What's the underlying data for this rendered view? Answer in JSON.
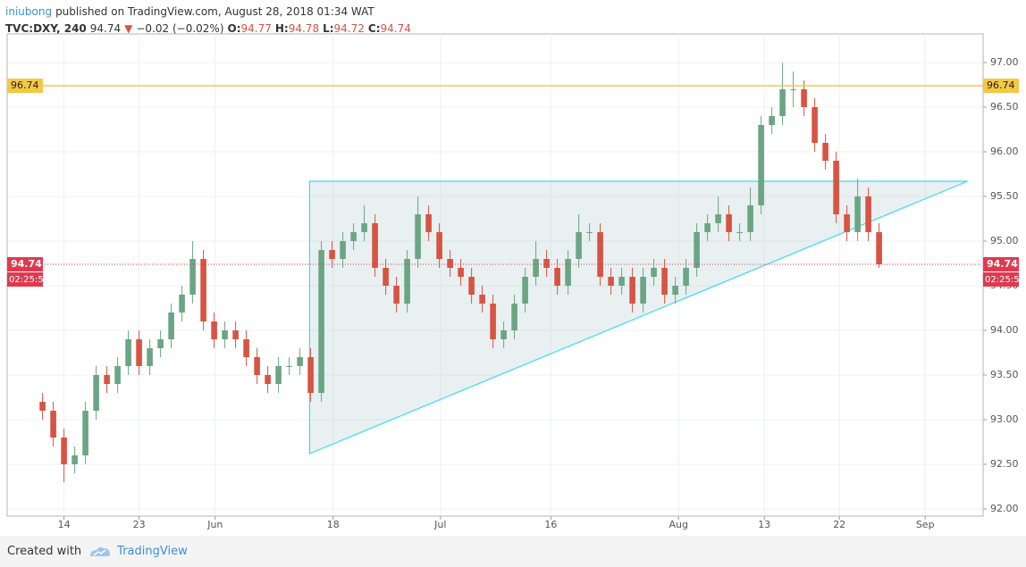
{
  "header": {
    "author": "iniubong",
    "published": "published on TradingView.com, August 28, 2018 01:34 WAT",
    "symbol": "TVC:DXY, 240",
    "last": 94.74,
    "direction": "▼",
    "change": "−0.02 (−0.02%)",
    "ohlc": [
      {
        "label": "O:",
        "value": 94.77
      },
      {
        "label": "H:",
        "value": 94.78
      },
      {
        "label": "L:",
        "value": 94.72
      },
      {
        "label": "C:",
        "value": 94.74
      }
    ]
  },
  "footer": {
    "created": "Created with",
    "brand": "TradingView"
  },
  "chart_data": {
    "type": "candlestick",
    "open": [
      93.2,
      93.1,
      92.8,
      92.5,
      92.6,
      93.1,
      93.5,
      93.4,
      93.6,
      93.9,
      93.6,
      93.8,
      93.9,
      94.2,
      94.4,
      94.8,
      94.1,
      93.9,
      94.0,
      93.9,
      93.7,
      93.5,
      93.4,
      93.6,
      93.6,
      93.7,
      93.3,
      94.9,
      94.8,
      95.0,
      95.1,
      95.2,
      94.7,
      94.5,
      94.3,
      94.8,
      95.3,
      95.1,
      94.8,
      94.7,
      94.6,
      94.4,
      94.3,
      93.9,
      94.0,
      94.3,
      94.6,
      94.8,
      94.7,
      94.5,
      94.8,
      95.1,
      95.1,
      94.6,
      94.5,
      94.6,
      94.3,
      94.6,
      94.7,
      94.4,
      94.5,
      94.7,
      95.1,
      95.2,
      95.3,
      95.1,
      95.1,
      95.4,
      96.3,
      96.4,
      96.7,
      96.7,
      96.5,
      96.1,
      95.9,
      95.3,
      95.1,
      95.5,
      95.1
    ],
    "high": [
      93.3,
      93.2,
      92.9,
      92.7,
      93.2,
      93.6,
      93.6,
      93.7,
      94.0,
      94.0,
      93.9,
      94.0,
      94.3,
      94.5,
      95.0,
      94.9,
      94.2,
      94.1,
      94.1,
      94.0,
      93.8,
      93.6,
      93.7,
      93.7,
      93.8,
      93.8,
      95.0,
      95.0,
      95.1,
      95.2,
      95.4,
      95.3,
      94.8,
      94.6,
      94.9,
      95.5,
      95.4,
      95.2,
      94.9,
      94.8,
      94.7,
      94.5,
      94.4,
      94.1,
      94.4,
      94.7,
      95.0,
      94.9,
      94.8,
      94.9,
      95.3,
      95.2,
      95.2,
      94.7,
      94.7,
      94.7,
      94.7,
      94.8,
      94.8,
      94.6,
      94.8,
      95.2,
      95.3,
      95.5,
      95.4,
      95.2,
      95.6,
      96.4,
      96.5,
      97.0,
      96.9,
      96.8,
      96.6,
      96.2,
      96.0,
      95.4,
      95.7,
      95.6,
      95.2
    ],
    "low": [
      93.0,
      92.7,
      92.3,
      92.4,
      92.5,
      93.0,
      93.3,
      93.3,
      93.5,
      93.5,
      93.5,
      93.7,
      93.8,
      94.1,
      94.3,
      94.0,
      93.8,
      93.8,
      93.8,
      93.6,
      93.4,
      93.3,
      93.3,
      93.5,
      93.5,
      93.2,
      93.2,
      94.7,
      94.7,
      94.9,
      95.0,
      94.6,
      94.4,
      94.2,
      94.2,
      94.7,
      95.0,
      94.7,
      94.6,
      94.5,
      94.3,
      94.2,
      93.8,
      93.8,
      93.9,
      94.2,
      94.5,
      94.6,
      94.4,
      94.4,
      94.7,
      95.0,
      94.5,
      94.4,
      94.4,
      94.2,
      94.2,
      94.5,
      94.3,
      94.3,
      94.4,
      94.6,
      95.0,
      95.1,
      95.0,
      95.0,
      95.0,
      95.3,
      96.2,
      96.3,
      96.5,
      96.4,
      96.0,
      95.8,
      95.2,
      95.0,
      95.0,
      95.0,
      94.7
    ],
    "close": [
      93.1,
      92.8,
      92.5,
      92.6,
      93.1,
      93.5,
      93.4,
      93.6,
      93.9,
      93.6,
      93.8,
      93.9,
      94.2,
      94.4,
      94.8,
      94.1,
      93.9,
      94.0,
      93.9,
      93.7,
      93.5,
      93.4,
      93.6,
      93.6,
      93.7,
      93.3,
      94.9,
      94.8,
      95.0,
      95.1,
      95.2,
      94.7,
      94.5,
      94.3,
      94.8,
      95.3,
      95.1,
      94.8,
      94.7,
      94.6,
      94.4,
      94.3,
      93.9,
      94.0,
      94.3,
      94.6,
      94.8,
      94.7,
      94.5,
      94.8,
      95.1,
      95.1,
      94.6,
      94.5,
      94.6,
      94.3,
      94.6,
      94.7,
      94.4,
      94.5,
      94.7,
      95.1,
      95.2,
      95.3,
      95.1,
      95.1,
      95.4,
      96.3,
      96.4,
      96.7,
      96.7,
      96.5,
      96.1,
      95.9,
      95.3,
      95.1,
      95.5,
      95.1,
      94.74
    ],
    "up_color": "#6ba583",
    "down_color": "#d75442",
    "xlim": [
      -3.3,
      87.7
    ],
    "xticks": [
      {
        "value": 2,
        "label": "14"
      },
      {
        "value": 9,
        "label": "23"
      },
      {
        "value": 16.1,
        "label": "Jun"
      },
      {
        "value": 27.1,
        "label": "18"
      },
      {
        "value": 37.1,
        "label": "Jul"
      },
      {
        "value": 47.4,
        "label": "16"
      },
      {
        "value": 59.3,
        "label": "Aug"
      },
      {
        "value": 67.3,
        "label": "13"
      },
      {
        "value": 74.3,
        "label": "22"
      },
      {
        "value": 82.3,
        "label": "Sep"
      }
    ],
    "ylim": [
      91.92,
      97.32
    ],
    "yticks": [
      {
        "value": 92,
        "label": "92.00"
      },
      {
        "value": 92.5,
        "label": "92.50"
      },
      {
        "value": 93,
        "label": "93.00"
      },
      {
        "value": 93.5,
        "label": "93.50"
      },
      {
        "value": 94,
        "label": "94.00"
      },
      {
        "value": 94.5,
        "label": "94.50"
      },
      {
        "value": 95,
        "label": "95.00"
      },
      {
        "value": 95.5,
        "label": "95.50"
      },
      {
        "value": 96,
        "label": "96.00"
      },
      {
        "value": 96.5,
        "label": "96.50"
      },
      {
        "value": 97,
        "label": "97.00"
      }
    ],
    "grid": true,
    "hline": {
      "value": 96.74,
      "color": "#f5c842"
    },
    "last_price": {
      "value": 94.74,
      "countdown": "02:25:5",
      "color": "#e0394f"
    },
    "triangle": {
      "points": [
        [
          24.9,
          92.62
        ],
        [
          24.9,
          95.67
        ],
        [
          86.25,
          95.67
        ]
      ],
      "color": "#3ddcf0",
      "fill": "rgba(180,205,210,0.3)"
    }
  }
}
